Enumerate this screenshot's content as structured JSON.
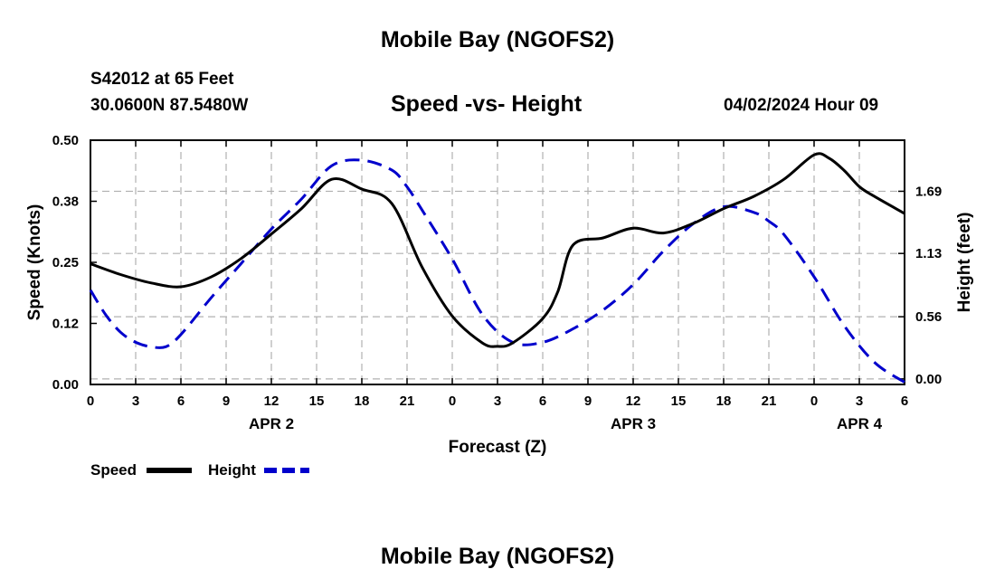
{
  "header": {
    "title": "Mobile Bay (NGOFS2)",
    "station": "S42012 at 65 Feet",
    "coords": "30.0600N  87.5480W",
    "subtitle": "Speed -vs- Height",
    "datetime": "04/02/2024 Hour 09"
  },
  "footer": {
    "title": "Mobile Bay (NGOFS2)"
  },
  "chart_data": {
    "type": "line",
    "xlabel": "Forecast (Z)",
    "ylabel": "Speed (Knots)",
    "y2label": "Height (feet)",
    "xlim": [
      0,
      54
    ],
    "ylim": [
      0,
      0.5
    ],
    "y2lim": [
      -0.05,
      2.15
    ],
    "x_tick_values": [
      0,
      3,
      6,
      9,
      12,
      15,
      18,
      21,
      24,
      27,
      30,
      33,
      36,
      39,
      42,
      45,
      48,
      51,
      54
    ],
    "x_tick_labels": [
      "0",
      "3",
      "6",
      "9",
      "12",
      "15",
      "18",
      "21",
      "0",
      "3",
      "6",
      "9",
      "12",
      "15",
      "18",
      "21",
      "0",
      "3",
      "6"
    ],
    "y_ticks": [
      "0.00",
      "0.12",
      "0.25",
      "0.38",
      "0.50"
    ],
    "y_tick_values": [
      0,
      0.125,
      0.25,
      0.375,
      0.5
    ],
    "y2_ticks": [
      "0.00",
      "0.56",
      "1.13",
      "1.69"
    ],
    "y2_tick_values": [
      0,
      0.56,
      1.13,
      1.69
    ],
    "date_labels": [
      {
        "label": "APR 2",
        "x": 12
      },
      {
        "label": "APR 3",
        "x": 36
      },
      {
        "label": "APR 4",
        "x": 51
      }
    ],
    "grid": true,
    "series": [
      {
        "name": "Speed",
        "axis": "left",
        "color": "#000000",
        "dash": "solid",
        "x": [
          0,
          2,
          4,
          6,
          8,
          10,
          12,
          14,
          16,
          18,
          20,
          22,
          24,
          26,
          27,
          28,
          30,
          31,
          32,
          34,
          36,
          38,
          40,
          42,
          44,
          46,
          48,
          49,
          50,
          51,
          52,
          54
        ],
        "values": [
          0.247,
          0.225,
          0.208,
          0.2,
          0.22,
          0.258,
          0.308,
          0.36,
          0.42,
          0.4,
          0.37,
          0.24,
          0.14,
          0.085,
          0.078,
          0.085,
          0.135,
          0.19,
          0.285,
          0.3,
          0.32,
          0.31,
          0.33,
          0.36,
          0.385,
          0.42,
          0.47,
          0.463,
          0.438,
          0.405,
          0.385,
          0.35
        ]
      },
      {
        "name": "Height",
        "axis": "right",
        "color": "#0000cc",
        "dash": "dashed",
        "x": [
          0,
          1,
          2,
          3,
          4,
          5,
          6,
          8,
          10,
          12,
          14,
          16,
          18,
          20,
          21,
          22,
          24,
          26,
          28,
          30,
          32,
          34,
          36,
          38,
          40,
          42,
          44,
          45,
          46,
          48,
          50,
          52,
          54
        ],
        "values": [
          0.8,
          0.58,
          0.42,
          0.33,
          0.29,
          0.29,
          0.4,
          0.73,
          1.04,
          1.35,
          1.62,
          1.92,
          1.97,
          1.88,
          1.73,
          1.52,
          1.08,
          0.58,
          0.33,
          0.33,
          0.45,
          0.62,
          0.85,
          1.15,
          1.4,
          1.55,
          1.5,
          1.42,
          1.3,
          0.92,
          0.48,
          0.15,
          -0.03
        ]
      }
    ]
  }
}
